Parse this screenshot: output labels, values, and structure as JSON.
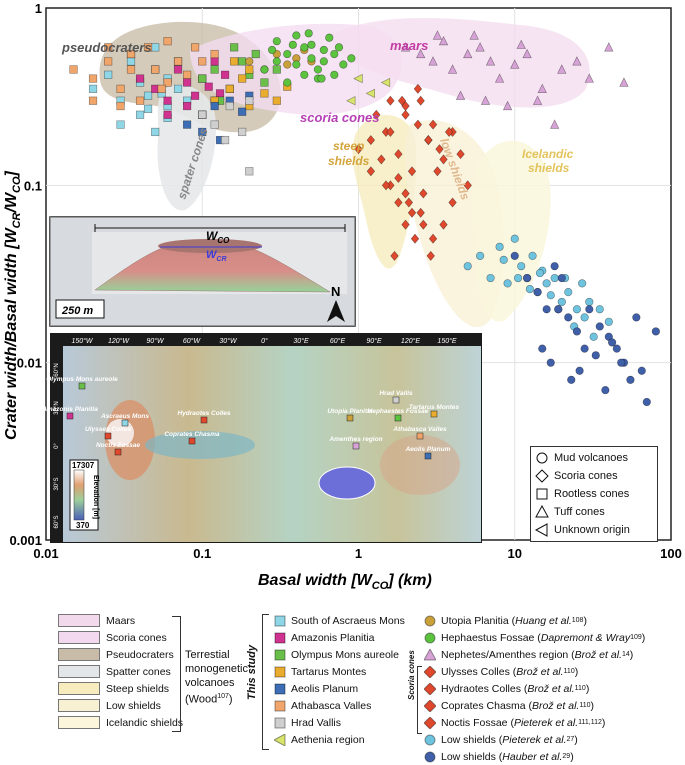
{
  "chart_data": {
    "type": "scatter",
    "xlabel": "Basal width [W",
    "xlabel_sub": "CO",
    "xlabel_unit": "] (km)",
    "ylabel": "Crater width/Basal width [W",
    "ylabel_sub1": "CR",
    "ylabel_mid": "/W",
    "ylabel_sub2": "CO",
    "ylabel_end": "]",
    "x_scale": "log",
    "y_scale": "log",
    "xlim": [
      0.01,
      100
    ],
    "ylim": [
      0.001,
      1
    ],
    "x_ticks": [
      "0.01",
      "0.1",
      "1",
      "10",
      "100"
    ],
    "y_ticks": [
      "0.001",
      "0.01",
      "0.1",
      "1"
    ],
    "grid": true,
    "region_labels": {
      "pseudocraters": "pseudocraters",
      "maars": "maars",
      "scoria_cones": "scoria cones",
      "spater_cones": "spater cones",
      "steep_shields_1": "steep",
      "steep_shields_2": "shields",
      "low_shields": "low shields",
      "icelandic_1": "Icelandic",
      "icelandic_2": "shields"
    },
    "series": [
      {
        "name": "South of Ascraeus Mons",
        "color": "#8fd6e6",
        "marker": "square",
        "x": [
          0.02,
          0.025,
          0.03,
          0.035,
          0.04,
          0.045,
          0.05,
          0.055,
          0.06,
          0.07,
          0.08,
          0.03,
          0.04,
          0.05,
          0.06,
          0.07,
          0.05,
          0.035,
          0.045,
          0.06
        ],
        "y": [
          0.35,
          0.42,
          0.3,
          0.5,
          0.38,
          0.27,
          0.45,
          0.33,
          0.4,
          0.35,
          0.3,
          0.22,
          0.25,
          0.2,
          0.28,
          0.5,
          0.6,
          0.55,
          0.32,
          0.24
        ]
      },
      {
        "name": "Amazonis Planitia",
        "color": "#d0338f",
        "marker": "square",
        "x": [
          0.04,
          0.05,
          0.06,
          0.07,
          0.08,
          0.09,
          0.1,
          0.11,
          0.12,
          0.13,
          0.06,
          0.08,
          0.1,
          0.12,
          0.14
        ],
        "y": [
          0.4,
          0.35,
          0.3,
          0.45,
          0.38,
          0.32,
          0.4,
          0.36,
          0.3,
          0.33,
          0.25,
          0.28,
          0.25,
          0.5,
          0.42
        ]
      },
      {
        "name": "Olympus Mons aureole",
        "color": "#6abf4b",
        "marker": "square",
        "x": [
          0.1,
          0.12,
          0.15,
          0.18,
          0.2,
          0.25,
          0.3,
          0.22,
          0.16,
          0.13
        ],
        "y": [
          0.4,
          0.45,
          0.35,
          0.5,
          0.42,
          0.38,
          0.45,
          0.55,
          0.6,
          0.3
        ]
      },
      {
        "name": "Tartarus Montes",
        "color": "#e9ac2e",
        "marker": "square",
        "x": [
          0.12,
          0.15,
          0.18,
          0.2,
          0.25,
          0.3,
          0.35,
          0.2,
          0.16
        ],
        "y": [
          0.3,
          0.35,
          0.4,
          0.28,
          0.33,
          0.3,
          0.36,
          0.45,
          0.5
        ]
      },
      {
        "name": "Aeolis Planum",
        "color": "#3d6eb5",
        "marker": "square",
        "x": [
          0.08,
          0.1,
          0.12,
          0.15,
          0.2,
          0.1,
          0.13,
          0.18
        ],
        "y": [
          0.22,
          0.25,
          0.28,
          0.3,
          0.32,
          0.2,
          0.18,
          0.26
        ]
      },
      {
        "name": "Athabasca Valles",
        "color": "#f0a56b",
        "marker": "square",
        "x": [
          0.015,
          0.02,
          0.025,
          0.03,
          0.035,
          0.04,
          0.05,
          0.06,
          0.07,
          0.08,
          0.02,
          0.03,
          0.045,
          0.06,
          0.025,
          0.035,
          0.055,
          0.1,
          0.12,
          0.09
        ],
        "y": [
          0.45,
          0.4,
          0.5,
          0.35,
          0.55,
          0.3,
          0.45,
          0.38,
          0.5,
          0.42,
          0.3,
          0.28,
          0.6,
          0.65,
          0.6,
          0.45,
          0.35,
          0.5,
          0.55,
          0.6
        ]
      },
      {
        "name": "Hrad Vallis",
        "color": "#cfcfcf",
        "marker": "square",
        "x": [
          0.1,
          0.12,
          0.15,
          0.2,
          0.18,
          0.14,
          0.2
        ],
        "y": [
          0.25,
          0.22,
          0.28,
          0.3,
          0.2,
          0.18,
          0.12
        ]
      },
      {
        "name": "Aethenia region",
        "color": "#d8e56a",
        "marker": "triangle-left",
        "x": [
          1.0,
          1.2,
          1.5,
          0.9
        ],
        "y": [
          0.4,
          0.33,
          0.38,
          0.3
        ]
      },
      {
        "name": "Utopia Planitia",
        "color": "#c9a03a",
        "marker": "circle",
        "x": [
          0.2,
          0.25,
          0.3,
          0.35,
          0.4,
          0.45,
          0.5
        ],
        "y": [
          0.5,
          0.45,
          0.55,
          0.48,
          0.52,
          0.58,
          0.5
        ]
      },
      {
        "name": "Hephaestus Fossae",
        "color": "#5cc33f",
        "marker": "circle",
        "x": [
          0.25,
          0.3,
          0.35,
          0.4,
          0.45,
          0.5,
          0.55,
          0.6,
          0.7,
          0.8,
          0.3,
          0.4,
          0.5,
          0.6,
          0.7,
          0.35,
          0.45,
          0.55,
          0.65,
          0.75,
          0.9,
          0.28,
          0.38,
          0.48,
          0.58
        ],
        "y": [
          0.45,
          0.5,
          0.55,
          0.48,
          0.6,
          0.52,
          0.45,
          0.5,
          0.55,
          0.48,
          0.65,
          0.7,
          0.62,
          0.58,
          0.42,
          0.38,
          0.42,
          0.4,
          0.68,
          0.6,
          0.52,
          0.58,
          0.62,
          0.72,
          0.4
        ]
      },
      {
        "name": "Nephetes/Amenthes region",
        "color": "#d7a3d6",
        "marker": "triangle-up",
        "x": [
          2.0,
          2.5,
          3.0,
          3.5,
          4.0,
          5.0,
          6.0,
          7.0,
          8.0,
          10.0,
          12.0,
          15.0,
          20.0,
          25.0,
          30.0,
          40.0,
          50.0,
          4.5,
          6.5,
          9.0,
          14.0,
          18.0,
          3.2,
          5.5,
          11.0
        ],
        "y": [
          0.6,
          0.55,
          0.5,
          0.65,
          0.45,
          0.55,
          0.6,
          0.5,
          0.4,
          0.48,
          0.55,
          0.35,
          0.45,
          0.5,
          0.4,
          0.6,
          0.38,
          0.32,
          0.3,
          0.28,
          0.3,
          0.22,
          0.7,
          0.7,
          0.62
        ]
      },
      {
        "name": "Ulysses Colles",
        "color": "#e0482d",
        "marker": "diamond",
        "x": [
          1.5,
          1.8,
          2.0,
          2.2,
          2.5,
          2.8,
          3.0,
          3.5,
          4.0,
          1.6,
          2.1,
          2.6,
          3.2,
          1.9,
          2.4
        ],
        "y": [
          0.2,
          0.15,
          0.25,
          0.12,
          0.3,
          0.18,
          0.22,
          0.14,
          0.2,
          0.1,
          0.08,
          0.09,
          0.12,
          0.3,
          0.35
        ]
      },
      {
        "name": "Hydraotes Colles",
        "color": "#e0482d",
        "marker": "diamond",
        "x": [
          1.2,
          1.5,
          1.8,
          2.0,
          2.5,
          3.0,
          3.5,
          4.0,
          5.0,
          1.7,
          2.3,
          2.9
        ],
        "y": [
          0.12,
          0.1,
          0.08,
          0.06,
          0.07,
          0.05,
          0.06,
          0.08,
          0.1,
          0.04,
          0.05,
          0.04
        ]
      },
      {
        "name": "Coprates Chasma",
        "color": "#e0482d",
        "marker": "diamond",
        "x": [
          1.3,
          1.6,
          2.0,
          2.4,
          2.8,
          3.3,
          3.8,
          4.5
        ],
        "y": [
          0.25,
          0.3,
          0.28,
          0.22,
          0.18,
          0.16,
          0.2,
          0.15
        ]
      },
      {
        "name": "Noctis Fossae",
        "color": "#e0482d",
        "marker": "diamond",
        "x": [
          1.0,
          1.2,
          1.4,
          1.6,
          1.8,
          2.0,
          2.2,
          2.6
        ],
        "y": [
          0.16,
          0.18,
          0.14,
          0.2,
          0.11,
          0.09,
          0.07,
          0.06
        ]
      },
      {
        "name": "Low shields (Pieterek et al.)",
        "color": "#6ec3df",
        "marker": "circle",
        "x": [
          5,
          6,
          7,
          8,
          9,
          10,
          11,
          12,
          13,
          14,
          15,
          16,
          18,
          20,
          22,
          25,
          28,
          30,
          35,
          40,
          8.5,
          10.5,
          12.5,
          14.5,
          17,
          19,
          21,
          24,
          27,
          32
        ],
        "y": [
          0.035,
          0.04,
          0.03,
          0.045,
          0.028,
          0.05,
          0.035,
          0.03,
          0.04,
          0.025,
          0.033,
          0.028,
          0.03,
          0.022,
          0.025,
          0.02,
          0.018,
          0.022,
          0.02,
          0.017,
          0.038,
          0.03,
          0.026,
          0.032,
          0.024,
          0.02,
          0.03,
          0.016,
          0.028,
          0.014
        ]
      },
      {
        "name": "Low shields (Hauber et al.)",
        "color": "#3f5fa8",
        "marker": "circle",
        "x": [
          10,
          12,
          14,
          16,
          18,
          20,
          22,
          25,
          28,
          30,
          35,
          40,
          45,
          50,
          55,
          60,
          70,
          80,
          15,
          17,
          19,
          23,
          26,
          33,
          38,
          42,
          48,
          65
        ],
        "y": [
          0.04,
          0.03,
          0.025,
          0.02,
          0.035,
          0.03,
          0.018,
          0.015,
          0.012,
          0.02,
          0.016,
          0.014,
          0.012,
          0.01,
          0.008,
          0.018,
          0.006,
          0.015,
          0.012,
          0.01,
          0.02,
          0.008,
          0.009,
          0.011,
          0.007,
          0.013,
          0.01,
          0.009
        ]
      }
    ]
  },
  "shape_legend": [
    {
      "shape": "circle",
      "label": "Mud volcanoes"
    },
    {
      "shape": "diamond",
      "label": "Scoria cones"
    },
    {
      "shape": "square",
      "label": "Rootless cones"
    },
    {
      "shape": "triangle-up",
      "label": "Tuff cones"
    },
    {
      "shape": "triangle-left",
      "label": "Unknown origin"
    }
  ],
  "inset_volcano": {
    "wco_prefix": "W",
    "wco_sub": "CO",
    "wcr_prefix": "W",
    "wcr_sub": "CR",
    "scale_label": "250 m",
    "north_label": "N"
  },
  "inset_map": {
    "top_longitudes": [
      "150°W",
      "120°W",
      "90°W",
      "60°W",
      "30°W",
      "0°",
      "30°E",
      "60°E",
      "90°E",
      "120°E",
      "150°E"
    ],
    "left_latitudes": [
      "60°N",
      "30°N",
      "0°",
      "30°S",
      "60°S"
    ],
    "places": [
      {
        "label": "Olympus Mons aureole",
        "color": "#6abf4b"
      },
      {
        "label": "Amazonis Planitia",
        "color": "#d0338f"
      },
      {
        "label": "Ascraeus Mons",
        "color": "#8fd6e6"
      },
      {
        "label": "Ulysses Colles",
        "color": "#e0482d"
      },
      {
        "label": "Noctis Fossae",
        "color": "#e0482d"
      },
      {
        "label": "Hydraotes Colles",
        "color": "#e0482d"
      },
      {
        "label": "Coprates Chasma",
        "color": "#e0482d"
      },
      {
        "label": "Utopia Planitia",
        "color": "#c9a03a"
      },
      {
        "label": "Hrad Vallis",
        "color": "#cfcfcf"
      },
      {
        "label": "Hephaestes Fossae",
        "color": "#5cc33f"
      },
      {
        "label": "Tartarus Montes",
        "color": "#e9ac2e"
      },
      {
        "label": "Amenthes region",
        "color": "#d7a3d6"
      },
      {
        "label": "Athabasca Valles",
        "color": "#f0a56b"
      },
      {
        "label": "Aeolis Planum",
        "color": "#3d6eb5"
      }
    ],
    "elev_max": "17307",
    "elev_min": "370",
    "elev_label": "Elevation [m]"
  },
  "bottom_legend": {
    "regions": [
      {
        "label": "Maars",
        "color": "#f3d9ec"
      },
      {
        "label": "Scoria cones",
        "color": "#f2d9f0"
      },
      {
        "label": "Pseudocraters",
        "color": "#c8bba7"
      },
      {
        "label": "Spatter cones",
        "color": "#e3e6e8"
      },
      {
        "label": "Steep shields",
        "color": "#f6ecbe"
      },
      {
        "label": "Low shields",
        "color": "#f8f0d3"
      },
      {
        "label": "Icelandic shields",
        "color": "#fbf6dc"
      }
    ],
    "terrestrial_1": "Terrestial",
    "terrestrial_2": "monogenetic",
    "terrestrial_3": "volcanoes",
    "terrestrial_4": "(Wood",
    "terrestrial_sup": "107",
    "terrestrial_end": ")",
    "this_study": "This study",
    "study_items": [
      {
        "label": "South of Ascraeus Mons",
        "color": "#8fd6e6",
        "shape": "square"
      },
      {
        "label": "Amazonis Planitia",
        "color": "#d0338f",
        "shape": "square"
      },
      {
        "label": "Olympus Mons aureole",
        "color": "#6abf4b",
        "shape": "square"
      },
      {
        "label": "Tartarus Montes",
        "color": "#e9ac2e",
        "shape": "square"
      },
      {
        "label": "Aeolis Planum",
        "color": "#3d6eb5",
        "shape": "square"
      },
      {
        "label": "Athabasca Valles",
        "color": "#f0a56b",
        "shape": "square"
      },
      {
        "label": "Hrad Vallis",
        "color": "#cfcfcf",
        "shape": "square"
      },
      {
        "label": "Aethenia region",
        "color": "#d8e56a",
        "shape": "triangle-left"
      }
    ],
    "scoria_label": "Scoria cones",
    "lit_items": [
      {
        "label": "Utopia Planitia (",
        "ref": "Huang et al.",
        "sup": "108",
        "end": ")",
        "color": "#c9a03a",
        "shape": "circle"
      },
      {
        "label": "Hephaestus Fossae (",
        "ref": "Dapremont & Wray",
        "sup": "109",
        "end": ")",
        "color": "#5cc33f",
        "shape": "circle"
      },
      {
        "label": "Nephetes/Amenthes region (",
        "ref": "Brož et al.",
        "sup": "14",
        "end": ")",
        "color": "#d7a3d6",
        "shape": "triangle-up"
      },
      {
        "label": "Ulysses Colles (",
        "ref": "Brož et al.",
        "sup": "110",
        "end": ")",
        "color": "#e0482d",
        "shape": "diamond"
      },
      {
        "label": "Hydraotes Colles (",
        "ref": "Brož et al.",
        "sup": "110",
        "end": ")",
        "color": "#e0482d",
        "shape": "diamond"
      },
      {
        "label": "Coprates Chasma (",
        "ref": "Brož et al.",
        "sup": "110",
        "end": ")",
        "color": "#e0482d",
        "shape": "diamond"
      },
      {
        "label": "Noctis Fossae (",
        "ref": "Pieterek et al.",
        "sup": "111,112",
        "end": ")",
        "color": "#e0482d",
        "shape": "diamond"
      },
      {
        "label": "Low shields (",
        "ref": "Pieterek et al.",
        "sup": "27",
        "end": ")",
        "color": "#6ec3df",
        "shape": "circle"
      },
      {
        "label": "Low shields (",
        "ref": "Hauber et al.",
        "sup": "29",
        "end": ")",
        "color": "#3f5fa8",
        "shape": "circle"
      }
    ]
  }
}
